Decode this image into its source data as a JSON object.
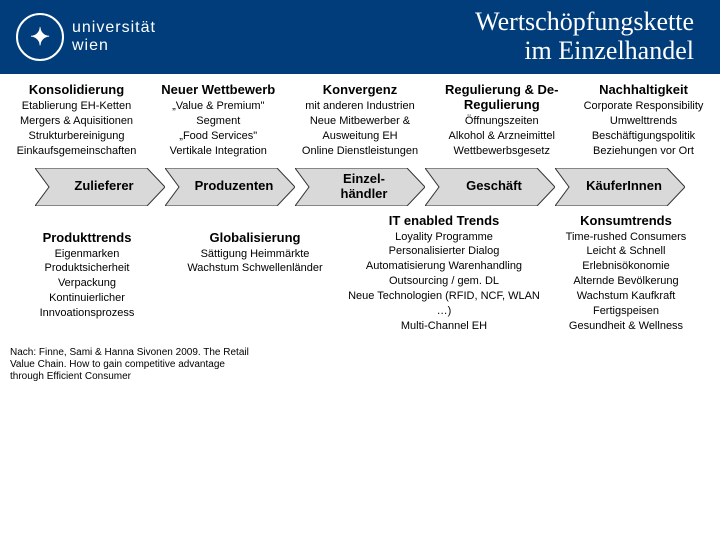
{
  "header": {
    "logo_text_a": "universität",
    "logo_text_b": "wien",
    "title_line1": "Wertschöpfungskette",
    "title_line2": "im Einzelhandel"
  },
  "top": [
    {
      "title": "Konsolidierung",
      "items": "Etablierung EH-Ketten\nMergers & Aquisitionen\nStrukturbereinigung\nEinkaufsgemeinschaften"
    },
    {
      "title": "Neuer Wettbewerb",
      "items": "„Value & Premium\" Segment\n„Food Services\"\nVertikale Integration"
    },
    {
      "title": "Konvergenz",
      "items": "mit anderen Industrien\nNeue Mitbewerber & Ausweitung EH\nOnline Dienstleistungen"
    },
    {
      "title": "Regulierung & De-Regulierung",
      "items": "Öffnungszeiten\nAlkohol & Arzneimittel\nWettbewerbsgesetz"
    },
    {
      "title": "Nachhaltigkeit",
      "items": "Corporate Responsibility\nUmwelttrends\nBeschäftigungspolitik\nBeziehungen vor Ort"
    }
  ],
  "arrows": {
    "labels": [
      "Zulieferer",
      "Produzenten",
      "Einzel-\nhändler",
      "Geschäft",
      "KäuferInnen"
    ],
    "fill": "#d9d9d9",
    "stroke": "#333333"
  },
  "sub": {
    "left": "IT enabled Trends",
    "right": "Konsumtrends"
  },
  "bottom": [
    {
      "title": "Produkttrends",
      "items": "Eigenmarken\nProduktsicherheit\nVerpackung\nKontinuierlicher Innvoationsprozess"
    },
    {
      "title": "Globalisierung",
      "items": "Sättigung Heimmärkte\nWachstum Schwellenländer"
    },
    {
      "title": "",
      "items": "Loyality Programme\nPersonalisierter Dialog\nAutomatisierung Warenhandling\nOutsourcing / gem. DL\nNeue Technologien (RFID, NCF, WLAN …)\nMulti-Channel EH"
    },
    {
      "title": "",
      "items": "Time-rushed Consumers\nLeicht & Schnell\nErlebnisökonomie\nAlternde Bevölkerung\nWachstum Kaufkraft\nFertigspeisen\nGesundheit & Wellness"
    }
  ],
  "citation": "Nach: Finne, Sami & Hanna Sivonen 2009. The Retail Value Chain. How to gain competitive advantage through Efficient Consumer"
}
